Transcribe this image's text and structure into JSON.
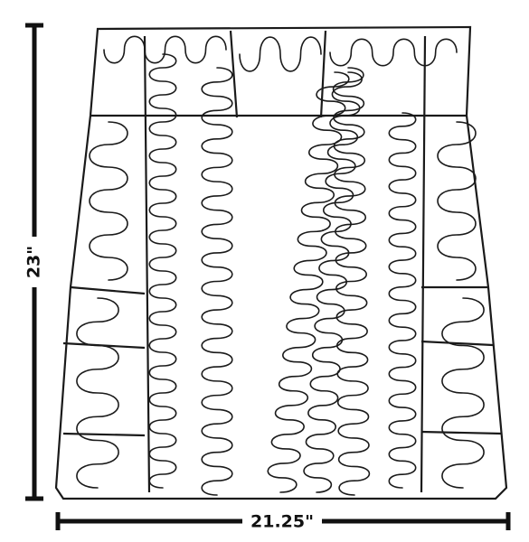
{
  "dimensions": {
    "height": "23\"",
    "width": "21.25\""
  }
}
